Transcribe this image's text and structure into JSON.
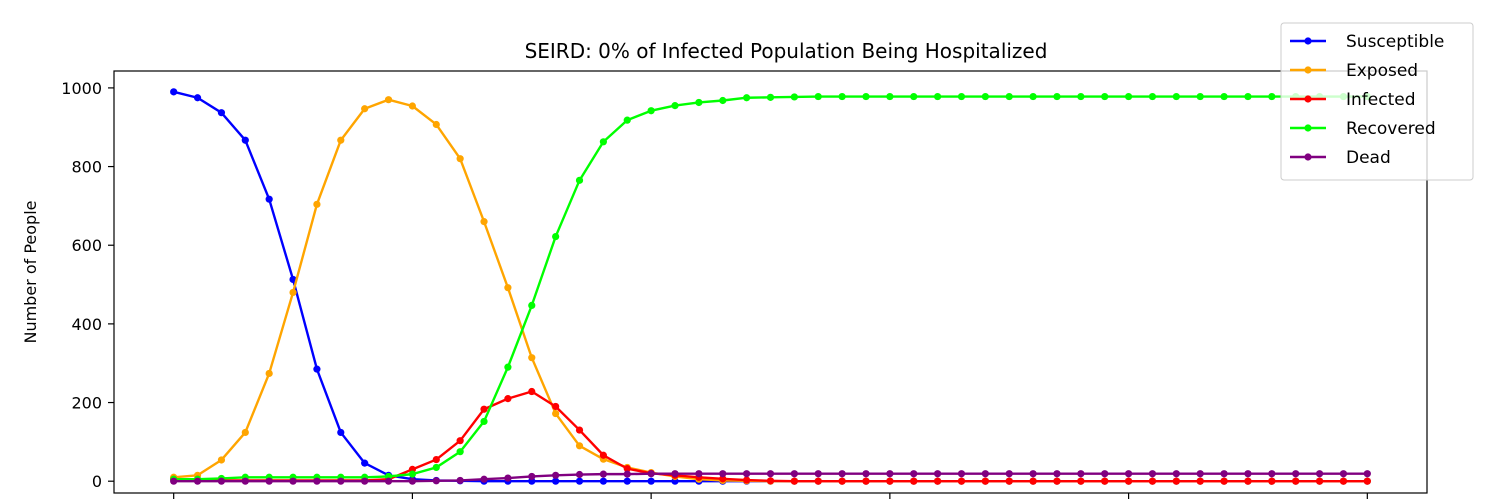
{
  "chart_data": {
    "type": "line",
    "title": "SEIRD: 0% of Infected Population Being Hospitalized",
    "xlabel": "",
    "ylabel": "Number of People",
    "x": [
      0,
      1,
      2,
      3,
      4,
      5,
      6,
      7,
      8,
      9,
      10,
      11,
      12,
      13,
      14,
      15,
      16,
      17,
      18,
      19,
      20,
      21,
      22,
      23,
      24,
      25,
      26,
      27,
      28,
      29,
      30,
      31,
      32,
      33,
      34,
      35,
      36,
      37,
      38,
      39,
      40,
      41,
      42,
      43,
      44,
      45,
      46,
      47,
      48,
      49,
      50
    ],
    "xlim": [
      -2.5,
      52.5
    ],
    "ylim": [
      -30,
      1043
    ],
    "yticks": [
      0,
      200,
      400,
      600,
      800,
      1000
    ],
    "xticks": [
      0,
      10,
      20,
      30,
      40,
      50
    ],
    "grid": false,
    "legend_position": "top-right",
    "series": [
      {
        "name": "Susceptible",
        "color": "#0000ff",
        "values": [
          990,
          975,
          937,
          867,
          717,
          513,
          285,
          124,
          46,
          15,
          5,
          2,
          1,
          0,
          0,
          0,
          0,
          0,
          0,
          0,
          0,
          0,
          0,
          0,
          0,
          0,
          0,
          0,
          0,
          0,
          0,
          0,
          0,
          0,
          0,
          0,
          0,
          0,
          0,
          0,
          0,
          0,
          0,
          0,
          0,
          0,
          0,
          0,
          0,
          0,
          0
        ]
      },
      {
        "name": "Exposed",
        "color": "#ffa500",
        "values": [
          10,
          15,
          54,
          124,
          274,
          480,
          704,
          867,
          947,
          970,
          954,
          907,
          820,
          660,
          492,
          314,
          172,
          90,
          56,
          35,
          22,
          12,
          5,
          2,
          1,
          0,
          0,
          0,
          0,
          0,
          0,
          0,
          0,
          0,
          0,
          0,
          0,
          0,
          0,
          0,
          0,
          0,
          0,
          0,
          0,
          0,
          0,
          0,
          0,
          0,
          0
        ]
      },
      {
        "name": "Infected",
        "color": "#ff0000",
        "values": [
          5,
          5,
          2,
          2,
          2,
          2,
          2,
          2,
          2,
          5,
          30,
          55,
          103,
          183,
          210,
          228,
          190,
          130,
          66,
          32,
          20,
          15,
          10,
          6,
          3,
          1,
          0,
          0,
          0,
          0,
          0,
          0,
          0,
          0,
          0,
          0,
          0,
          0,
          0,
          0,
          0,
          0,
          0,
          0,
          0,
          0,
          0,
          0,
          0,
          0,
          0
        ]
      },
      {
        "name": "Recovered",
        "color": "#00ff00",
        "values": [
          5,
          5,
          7,
          10,
          10,
          10,
          10,
          10,
          10,
          12,
          18,
          35,
          75,
          152,
          290,
          447,
          622,
          765,
          863,
          918,
          942,
          955,
          963,
          968,
          975,
          976,
          977,
          978,
          978,
          978,
          978,
          978,
          978,
          978,
          978,
          978,
          978,
          978,
          978,
          978,
          978,
          978,
          978,
          978,
          978,
          978,
          978,
          978,
          978,
          978,
          978
        ]
      },
      {
        "name": "Dead",
        "color": "#800080",
        "values": [
          0,
          0,
          0,
          0,
          0,
          0,
          0,
          0,
          0,
          0,
          0,
          1,
          2,
          5,
          8,
          12,
          15,
          17,
          18,
          18,
          19,
          19,
          19,
          19,
          19,
          19,
          19,
          19,
          19,
          19,
          19,
          19,
          19,
          19,
          19,
          19,
          19,
          19,
          19,
          19,
          19,
          19,
          19,
          19,
          19,
          19,
          19,
          19,
          19,
          19,
          19
        ]
      }
    ]
  }
}
